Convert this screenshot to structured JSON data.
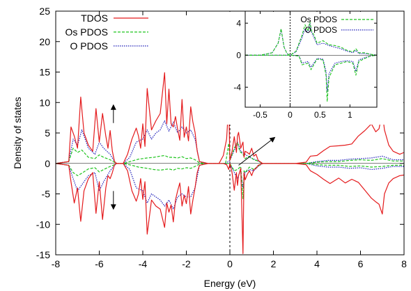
{
  "chart_data": {
    "type": "line",
    "xlabel": "Energy (eV)",
    "ylabel": "Density of states",
    "xlim": [
      -8,
      8
    ],
    "ylim": [
      -15,
      25
    ],
    "xticks": [
      "-8",
      "-6",
      "-4",
      "-2",
      "0",
      "2",
      "4",
      "6",
      "8"
    ],
    "yticks": [
      "-15",
      "-10",
      "-5",
      "0",
      "5",
      "10",
      "15",
      "20",
      "25"
    ],
    "fermi_level": 0,
    "legend_position": "top-left",
    "colors": {
      "tdos": "#e41a1c",
      "os": "#1fc41f",
      "o": "#1a1ab8",
      "axis": "#000000"
    },
    "series": [
      {
        "name": "TDOS",
        "spin": "up",
        "x": [
          -8,
          -7.4,
          -7.3,
          -7.15,
          -7.0,
          -6.85,
          -6.7,
          -6.5,
          -6.3,
          -6.15,
          -6.0,
          -5.85,
          -5.7,
          -5.6,
          -5.5,
          -5.4,
          -5.3,
          -5.2,
          -5.1,
          -4.9,
          -4.7,
          -4.5,
          -4.3,
          -4.2,
          -4.1,
          -4.0,
          -3.9,
          -3.8,
          -3.6,
          -3.4,
          -3.2,
          -3.0,
          -2.9,
          -2.8,
          -2.7,
          -2.6,
          -2.5,
          -2.4,
          -2.3,
          -2.2,
          -2.1,
          -2.0,
          -1.9,
          -1.8,
          -1.7,
          -1.6,
          -1.5,
          -1.4,
          -1.0,
          -0.5,
          -0.3,
          -0.15,
          -0.05,
          0.0,
          0.1,
          0.2,
          0.3,
          0.35,
          0.4,
          0.5,
          0.6,
          0.65,
          0.7,
          0.8,
          0.9,
          1.0,
          1.1,
          1.2,
          1.3,
          1.5,
          2.0,
          3.0,
          3.5,
          3.7,
          4.0,
          4.3,
          4.6,
          5.0,
          5.3,
          5.6,
          5.9,
          6.2,
          6.5,
          6.7,
          6.85,
          7.0,
          7.1,
          7.3,
          7.5,
          7.8,
          8.0
        ],
        "y": [
          0,
          0.3,
          6,
          4.5,
          2.5,
          10.9,
          5,
          3,
          2,
          9,
          3.5,
          8.2,
          4.5,
          2.5,
          5.4,
          2,
          0.3,
          0,
          0,
          0,
          1.5,
          4,
          5.8,
          4.5,
          2.5,
          6.5,
          2.8,
          12.3,
          5.5,
          7,
          8.2,
          14.9,
          6.5,
          12.2,
          6.5,
          6,
          7.7,
          5.6,
          3.8,
          10.5,
          4.3,
          6,
          3.7,
          9.3,
          6.8,
          5.1,
          2,
          0.3,
          0,
          0,
          1.3,
          4,
          10,
          0.5,
          2,
          4.4,
          1.8,
          4.5,
          5.1,
          2.5,
          3.5,
          1,
          2,
          1.8,
          1.5,
          2.5,
          1.2,
          1.5,
          0.5,
          0,
          0,
          0,
          0.2,
          1.2,
          1.3,
          2.1,
          2.8,
          2.9,
          3,
          3.2,
          4.5,
          5.4,
          6.5,
          5.2,
          5.7,
          8.4,
          5.5,
          3,
          2,
          1.5,
          1.8
        ]
      },
      {
        "name": "TDOS",
        "spin": "down",
        "x": [
          -8,
          -7.4,
          -7.3,
          -7.15,
          -7.0,
          -6.85,
          -6.7,
          -6.5,
          -6.3,
          -6.15,
          -6.0,
          -5.85,
          -5.7,
          -5.6,
          -5.5,
          -5.4,
          -5.3,
          -5.2,
          -5.1,
          -4.9,
          -4.7,
          -4.5,
          -4.3,
          -4.2,
          -4.1,
          -4.0,
          -3.9,
          -3.8,
          -3.6,
          -3.4,
          -3.2,
          -3.0,
          -2.9,
          -2.8,
          -2.7,
          -2.6,
          -2.5,
          -2.4,
          -2.3,
          -2.2,
          -2.1,
          -2.0,
          -1.9,
          -1.8,
          -1.7,
          -1.6,
          -1.5,
          -1.4,
          -1.0,
          -0.5,
          -0.3,
          -0.15,
          -0.05,
          0.0,
          0.1,
          0.2,
          0.3,
          0.35,
          0.4,
          0.5,
          0.6,
          0.65,
          0.7,
          0.8,
          0.9,
          1.0,
          1.1,
          1.2,
          1.3,
          1.5,
          2.0,
          3.0,
          3.5,
          3.7,
          4.0,
          4.3,
          4.6,
          5.0,
          5.3,
          5.6,
          5.9,
          6.2,
          6.5,
          6.7,
          6.85,
          7.0,
          7.1,
          7.3,
          7.5,
          7.8,
          8.0
        ],
        "y": [
          0,
          -0.3,
          -3,
          -6.5,
          -4,
          -9.5,
          -4.5,
          -2.5,
          -1.5,
          -8.2,
          -3,
          -9.2,
          -4,
          -2,
          -2.5,
          -1.5,
          -0.2,
          0,
          0,
          0,
          -1.2,
          -4.5,
          -6.2,
          -5,
          -2.5,
          -5.9,
          -3,
          -11.6,
          -6,
          -7,
          -7.5,
          -10.5,
          -6.5,
          -8,
          -6.8,
          -9.6,
          -6,
          -4.5,
          -3.2,
          -7,
          -5.2,
          -6.6,
          -3.8,
          -8.3,
          -6,
          -4,
          -1.5,
          -0.3,
          0,
          0,
          0,
          -0.2,
          -1,
          0,
          -1.5,
          -4.4,
          -1.5,
          -3.6,
          -2,
          -0.8,
          -14.8,
          -1.5,
          -2.7,
          -1.8,
          -1.2,
          -2,
          -1,
          -0.8,
          -0.3,
          0,
          0,
          0,
          -0.2,
          -1.2,
          -1.8,
          -2.6,
          -3.3,
          -2.4,
          -3.2,
          -2.6,
          -3.1,
          -4.4,
          -5.7,
          -6.3,
          -6.7,
          -8.3,
          -5,
          -3.2,
          -2.5,
          -2,
          -1.9
        ]
      },
      {
        "name": "Os PDOS",
        "spin": "up",
        "x": [
          -8,
          -7.4,
          -7.2,
          -7.0,
          -6.8,
          -6.5,
          -6.2,
          -6.0,
          -5.8,
          -5.5,
          -5.3,
          -5.2,
          -4.9,
          -4.5,
          -4.2,
          -4.0,
          -3.8,
          -3.5,
          -3.2,
          -3.0,
          -2.8,
          -2.6,
          -2.4,
          -2.2,
          -2.0,
          -1.8,
          -1.6,
          -1.4,
          -1.0,
          -0.2,
          -0.05,
          0.0,
          0.2,
          0.35,
          0.45,
          0.6,
          0.7,
          0.9,
          1.1,
          1.3,
          1.5,
          3.5,
          4.0,
          4.5,
          5.0,
          5.5,
          6.0,
          6.5,
          7.0,
          7.5,
          8.0
        ],
        "y": [
          0,
          0.3,
          2.5,
          1.8,
          2.2,
          1,
          0.8,
          1.4,
          1,
          0.6,
          0.2,
          0,
          0,
          0.4,
          0.7,
          0.8,
          0.9,
          1,
          1.2,
          1.3,
          1,
          1,
          0.9,
          1.1,
          0.8,
          0.9,
          0.6,
          0.1,
          0,
          0,
          3.3,
          0.5,
          2.5,
          3.5,
          2,
          1.5,
          0.8,
          1.2,
          0.6,
          0.4,
          0,
          0,
          0.2,
          0.3,
          0.3,
          0.5,
          0.6,
          0.5,
          0.8,
          0.4,
          0.4
        ]
      },
      {
        "name": "Os PDOS",
        "spin": "down",
        "x": [
          -8,
          -7.4,
          -7.2,
          -7.0,
          -6.8,
          -6.5,
          -6.2,
          -6.0,
          -5.8,
          -5.5,
          -5.3,
          -5.2,
          -4.9,
          -4.5,
          -4.2,
          -4.0,
          -3.8,
          -3.5,
          -3.2,
          -3.0,
          -2.8,
          -2.6,
          -2.4,
          -2.2,
          -2.0,
          -1.8,
          -1.6,
          -1.4,
          -1.0,
          -0.2,
          0.0,
          0.2,
          0.35,
          0.5,
          0.6,
          0.65,
          0.7,
          0.9,
          1.1,
          1.3,
          1.5,
          3.5,
          4.0,
          4.5,
          5.0,
          5.5,
          6.0,
          6.5,
          7.0,
          7.5,
          8.0
        ],
        "y": [
          0,
          -0.3,
          -1.5,
          -2,
          -1.6,
          -0.9,
          -0.7,
          -1.4,
          -1,
          -0.5,
          -0.2,
          0,
          0,
          -0.3,
          -0.6,
          -0.7,
          -0.8,
          -1,
          -1.1,
          -1,
          -0.9,
          -1.1,
          -0.8,
          -0.9,
          -0.7,
          -0.8,
          -0.5,
          -0.1,
          0,
          0,
          0,
          -1.2,
          -1,
          -0.5,
          -5.8,
          -1.2,
          -1.5,
          -0.6,
          -1,
          -0.4,
          0,
          0,
          -0.2,
          -0.3,
          -0.3,
          -0.5,
          -0.4,
          -0.6,
          -0.5,
          -0.3,
          -0.3
        ]
      },
      {
        "name": "O PDOS",
        "spin": "up",
        "x": [
          -8,
          -7.4,
          -7.2,
          -7.0,
          -6.8,
          -6.5,
          -6.2,
          -6.0,
          -5.8,
          -5.5,
          -5.3,
          -5.2,
          -4.9,
          -4.6,
          -4.3,
          -4.0,
          -3.8,
          -3.6,
          -3.4,
          -3.2,
          -3.0,
          -2.8,
          -2.6,
          -2.4,
          -2.2,
          -2.0,
          -1.8,
          -1.6,
          -1.4,
          -1.0,
          -0.2,
          0.0,
          0.2,
          0.35,
          0.5,
          0.7,
          0.9,
          1.1,
          1.3,
          1.5,
          3.5,
          4.0,
          4.5,
          5.0,
          5.5,
          6.0,
          6.5,
          7.0,
          7.5,
          8.0
        ],
        "y": [
          0,
          0.3,
          4,
          3,
          5.5,
          2.5,
          1.5,
          3.5,
          2.5,
          1.5,
          0.3,
          0,
          0,
          1,
          3.5,
          4,
          5.5,
          4,
          5,
          5.5,
          7,
          5.3,
          6.8,
          5,
          6,
          5,
          5.5,
          4,
          0.3,
          0,
          0,
          0.5,
          2.2,
          3.5,
          2,
          1.5,
          1,
          0.7,
          0.4,
          0,
          0,
          0.3,
          0.5,
          0.5,
          0.7,
          0.8,
          0.9,
          1.2,
          0.6,
          0.6
        ]
      },
      {
        "name": "O PDOS",
        "spin": "down",
        "x": [
          -8,
          -7.4,
          -7.2,
          -7.0,
          -6.8,
          -6.5,
          -6.2,
          -6.0,
          -5.8,
          -5.5,
          -5.3,
          -5.2,
          -4.9,
          -4.6,
          -4.3,
          -4.0,
          -3.8,
          -3.6,
          -3.4,
          -3.2,
          -3.0,
          -2.8,
          -2.6,
          -2.4,
          -2.2,
          -2.0,
          -1.8,
          -1.6,
          -1.4,
          -1.0,
          -0.2,
          0.0,
          0.2,
          0.35,
          0.5,
          0.6,
          0.7,
          0.9,
          1.1,
          1.3,
          1.5,
          3.5,
          4.0,
          4.5,
          5.0,
          5.5,
          6.0,
          6.5,
          7.0,
          7.5,
          8.0
        ],
        "y": [
          0,
          -0.3,
          -2.5,
          -4.5,
          -3.5,
          -2,
          -1.5,
          -4.5,
          -3,
          -1.2,
          -0.3,
          0,
          0,
          -1,
          -4,
          -4.5,
          -6.5,
          -5,
          -5.5,
          -6,
          -7,
          -6,
          -7.5,
          -5.5,
          -5,
          -5.5,
          -5.5,
          -4,
          -0.3,
          0,
          0,
          0,
          -1.5,
          -2.5,
          -1,
          -4,
          -1.5,
          -1,
          -1.2,
          -0.5,
          0,
          0,
          -0.4,
          -0.6,
          -0.6,
          -0.8,
          -0.7,
          -1,
          -0.8,
          -0.5,
          -0.5
        ]
      }
    ],
    "annotations": [
      {
        "type": "arrow",
        "direction": "up",
        "spin": "up",
        "x": -5.35,
        "y": 9.6
      },
      {
        "type": "arrow",
        "direction": "down",
        "spin": "down",
        "x": -5.35,
        "y": -7.5
      },
      {
        "type": "arrow",
        "direction": "to-inset",
        "x": 0.4,
        "y": -0.3
      }
    ],
    "inset": {
      "type": "line",
      "xlim": [
        -0.75,
        1.45
      ],
      "ylim": [
        -6.5,
        5.5
      ],
      "xticks": [
        "-0.5",
        "0",
        "0.5",
        "1"
      ],
      "yticks": [
        "-4",
        "0",
        "4"
      ],
      "fermi_level": 0,
      "legend_position": "top-right",
      "series": [
        {
          "name": "Os PDOS",
          "spin": "up",
          "x": [
            -0.75,
            -0.5,
            -0.3,
            -0.2,
            -0.15,
            -0.1,
            -0.05,
            0.0,
            0.1,
            0.2,
            0.25,
            0.3,
            0.33,
            0.36,
            0.4,
            0.45,
            0.55,
            0.65,
            0.75,
            0.85,
            0.95,
            1.05,
            1.1,
            1.15,
            1.25,
            1.35,
            1.45
          ],
          "y": [
            0,
            0,
            0.3,
            1.5,
            3.3,
            1,
            0.2,
            0,
            0.5,
            2.5,
            3.8,
            3,
            4.2,
            3,
            2.5,
            1.5,
            1.8,
            1.3,
            1.2,
            1,
            0.6,
            0.4,
            0.8,
            0.3,
            0.3,
            0.1,
            0
          ]
        },
        {
          "name": "Os PDOS",
          "spin": "down",
          "x": [
            -0.75,
            -0.2,
            0.0,
            0.15,
            0.2,
            0.3,
            0.35,
            0.45,
            0.55,
            0.6,
            0.62,
            0.65,
            0.75,
            0.85,
            0.95,
            1.05,
            1.1,
            1.15,
            1.25,
            1.35,
            1.45
          ],
          "y": [
            0,
            0,
            0,
            -0.1,
            -1.2,
            -1,
            -1.8,
            -0.5,
            -0.6,
            -2.5,
            -5.8,
            -2.8,
            -1.2,
            -1,
            -0.8,
            -1,
            -2.5,
            -0.8,
            -0.4,
            -0.1,
            0
          ]
        },
        {
          "name": "O PDOS",
          "spin": "up",
          "x": [
            -0.75,
            -0.5,
            -0.3,
            -0.2,
            -0.15,
            -0.1,
            -0.05,
            0.0,
            0.1,
            0.2,
            0.25,
            0.3,
            0.33,
            0.36,
            0.4,
            0.45,
            0.55,
            0.65,
            0.75,
            0.85,
            0.95,
            1.05,
            1.1,
            1.15,
            1.25,
            1.35,
            1.45
          ],
          "y": [
            0,
            0,
            0.3,
            1.5,
            3.2,
            1,
            0.2,
            0,
            0.4,
            2.2,
            3.3,
            2.8,
            4,
            2.8,
            2.2,
            1.3,
            1.5,
            1.2,
            1,
            0.8,
            0.5,
            0.3,
            0.6,
            0.2,
            0.2,
            0.1,
            0
          ]
        },
        {
          "name": "O PDOS",
          "spin": "down",
          "x": [
            -0.75,
            -0.2,
            0.0,
            0.15,
            0.2,
            0.3,
            0.35,
            0.45,
            0.55,
            0.6,
            0.62,
            0.65,
            0.75,
            0.85,
            0.95,
            1.05,
            1.1,
            1.15,
            1.25,
            1.35,
            1.45
          ],
          "y": [
            0,
            0,
            0,
            -0.1,
            -1,
            -0.8,
            -1.5,
            -0.4,
            -0.5,
            -2,
            -4.5,
            -2.3,
            -1,
            -0.8,
            -0.7,
            -0.8,
            -2,
            -0.6,
            -0.3,
            -0.1,
            0
          ]
        }
      ]
    }
  }
}
